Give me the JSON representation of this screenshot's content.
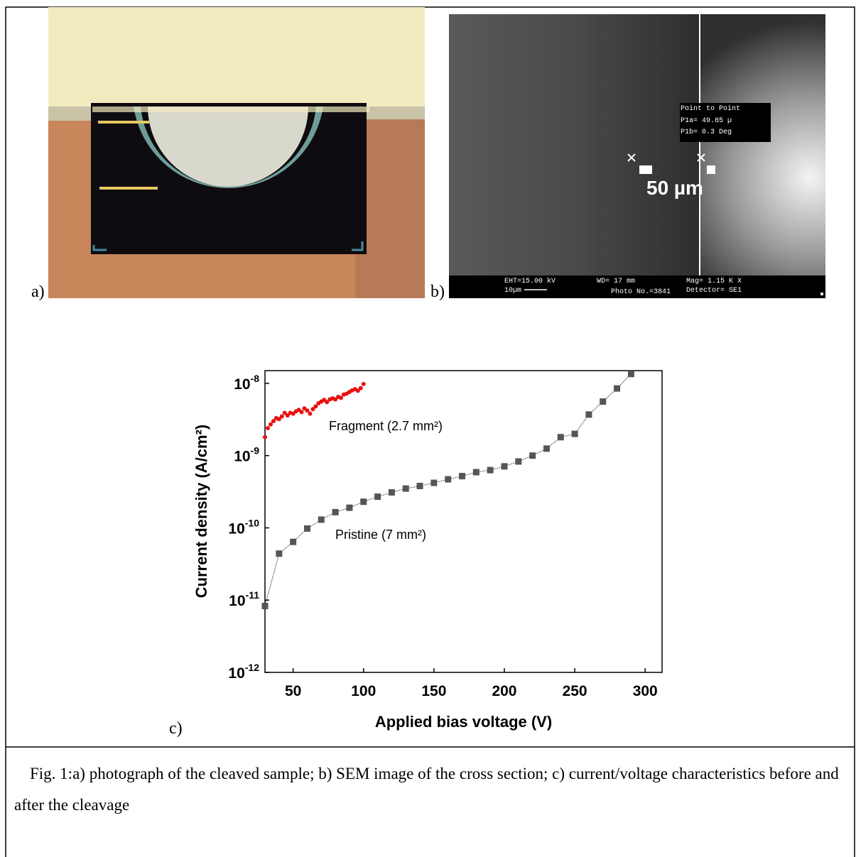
{
  "panel_labels": [
    "a)",
    "b)",
    "c)"
  ],
  "sem_overlay": {
    "box": [
      "Point to Point",
      "P1a= 49.85 µ",
      "P1b=  0.3 Deg"
    ],
    "scale_text": "50 µm",
    "footer": [
      "EHT=15.00 kV",
      "10µm",
      "WD=  17 mm",
      "Photo No.=3841",
      "Mag=  1.15 K X",
      "Detector= SE1"
    ]
  },
  "chart_data": {
    "type": "line",
    "log_y": true,
    "grid": false,
    "xlabel": "Applied bias voltage (V)",
    "ylabel": "Current density (A/cm²)",
    "xlim": [
      30,
      312
    ],
    "ylim": [
      1e-12,
      1.5e-08
    ],
    "xticks": [
      50,
      100,
      150,
      200,
      250,
      300
    ],
    "yticks": [
      {
        "value": 1e-12,
        "label": [
          "10",
          "-12"
        ]
      },
      {
        "value": 1e-11,
        "label": [
          "10",
          "-11"
        ]
      },
      {
        "value": 1e-10,
        "label": [
          "10",
          "-10"
        ]
      },
      {
        "value": 1e-09,
        "label": [
          "10",
          "-9"
        ]
      },
      {
        "value": 1e-08,
        "label": [
          "10",
          "-8"
        ]
      }
    ],
    "annotations": [
      "Fragment (2.7 mm²)",
      "Pristine (7 mm²)"
    ],
    "series": [
      {
        "name": "Pristine",
        "color": "#555555",
        "marker": "square",
        "line": true,
        "x": [
          30,
          40,
          50,
          60,
          70,
          80,
          90,
          100,
          110,
          120,
          130,
          140,
          150,
          160,
          170,
          180,
          190,
          200,
          210,
          220,
          230,
          240,
          250,
          260,
          270,
          280,
          290
        ],
        "values": [
          8.3e-12,
          4.4e-11,
          6.4e-11,
          9.8e-11,
          1.3e-10,
          1.65e-10,
          1.9e-10,
          2.3e-10,
          2.7e-10,
          3.1e-10,
          3.5e-10,
          3.8e-10,
          4.2e-10,
          4.7e-10,
          5.2e-10,
          5.9e-10,
          6.3e-10,
          7.1e-10,
          8.3e-10,
          1e-09,
          1.25e-09,
          1.8e-09,
          2e-09,
          3.7e-09,
          5.6e-09,
          8.5e-09,
          1.35e-08
        ]
      },
      {
        "name": "Fragment",
        "color": "#e8110f",
        "marker": "circle",
        "line": false,
        "x": [
          30,
          32,
          34,
          36,
          38,
          40,
          42,
          44,
          46,
          48,
          50,
          52,
          54,
          56,
          58,
          60,
          62,
          64,
          66,
          68,
          70,
          72,
          74,
          76,
          78,
          80,
          82,
          84,
          86,
          88,
          90,
          92,
          94,
          96,
          98,
          100
        ],
        "values": [
          1.8e-09,
          2.4e-09,
          2.7e-09,
          3e-09,
          3.3e-09,
          3.2e-09,
          3.5e-09,
          3.9e-09,
          3.6e-09,
          3.9e-09,
          3.8e-09,
          4.1e-09,
          4.3e-09,
          4e-09,
          4.5e-09,
          4.2e-09,
          3.8e-09,
          4.4e-09,
          4.8e-09,
          5.3e-09,
          5.6e-09,
          5.9e-09,
          5.5e-09,
          6e-09,
          6.2e-09,
          6e-09,
          6.5e-09,
          6.3e-09,
          7e-09,
          7.2e-09,
          7.6e-09,
          8e-09,
          8.3e-09,
          7.9e-09,
          8.6e-09,
          9.8e-09
        ]
      }
    ]
  },
  "caption": "Fig. 1:a) photograph of the cleaved sample; b) SEM image of the cross section; c) current/voltage characteristics before and after the cleavage"
}
